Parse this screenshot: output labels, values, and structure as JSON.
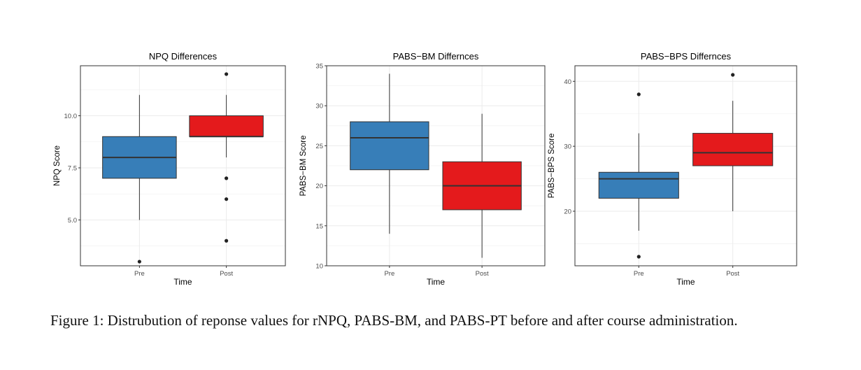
{
  "chart_data": [
    {
      "type": "boxplot",
      "title": "NPQ Differences",
      "xlabel": "Time",
      "ylabel": "NPQ Score",
      "categories": [
        "Pre",
        "Post"
      ],
      "y_ticks": [
        "5.0",
        "7.5",
        "10.0"
      ],
      "ylim": [
        2.8,
        12.4
      ],
      "boxes": [
        {
          "category": "Pre",
          "min": 5,
          "q1": 7,
          "median": 8,
          "q3": 9,
          "max": 11,
          "outliers": [
            3
          ],
          "color": "#377EB8"
        },
        {
          "category": "Post",
          "min": 8,
          "q1": 9,
          "median": 9,
          "q3": 10,
          "max": 11,
          "outliers": [
            12,
            7,
            6,
            4
          ],
          "color": "#E41A1C"
        }
      ],
      "grid": true
    },
    {
      "type": "boxplot",
      "title": "PABS−BM Differnces",
      "xlabel": "Time",
      "ylabel": "PABS−BM Score",
      "categories": [
        "Pre",
        "Post"
      ],
      "y_ticks": [
        "10",
        "15",
        "20",
        "25",
        "30",
        "35"
      ],
      "ylim": [
        10,
        35
      ],
      "boxes": [
        {
          "category": "Pre",
          "min": 14,
          "q1": 22,
          "median": 26,
          "q3": 28,
          "max": 34,
          "outliers": [],
          "color": "#377EB8"
        },
        {
          "category": "Post",
          "min": 11,
          "q1": 17,
          "median": 20,
          "q3": 23,
          "max": 29,
          "outliers": [],
          "color": "#E41A1C"
        }
      ],
      "grid": true
    },
    {
      "type": "boxplot",
      "title": "PABS−BPS Differnces",
      "xlabel": "Time",
      "ylabel": "PABS−BPS Score",
      "categories": [
        "Pre",
        "Post"
      ],
      "y_ticks": [
        "20",
        "30",
        "40"
      ],
      "ylim": [
        11.6,
        42.4
      ],
      "boxes": [
        {
          "category": "Pre",
          "min": 17,
          "q1": 22,
          "median": 25,
          "q3": 26,
          "max": 32,
          "outliers": [
            38,
            13
          ],
          "color": "#377EB8"
        },
        {
          "category": "Post",
          "min": 20,
          "q1": 27,
          "median": 29,
          "q3": 32,
          "max": 37,
          "outliers": [
            41
          ],
          "color": "#E41A1C"
        }
      ],
      "grid": true
    }
  ],
  "caption": "Figure 1:  Distrubution of reponse values for rNPQ, PABS-BM, and PABS-PT before and after course administration."
}
